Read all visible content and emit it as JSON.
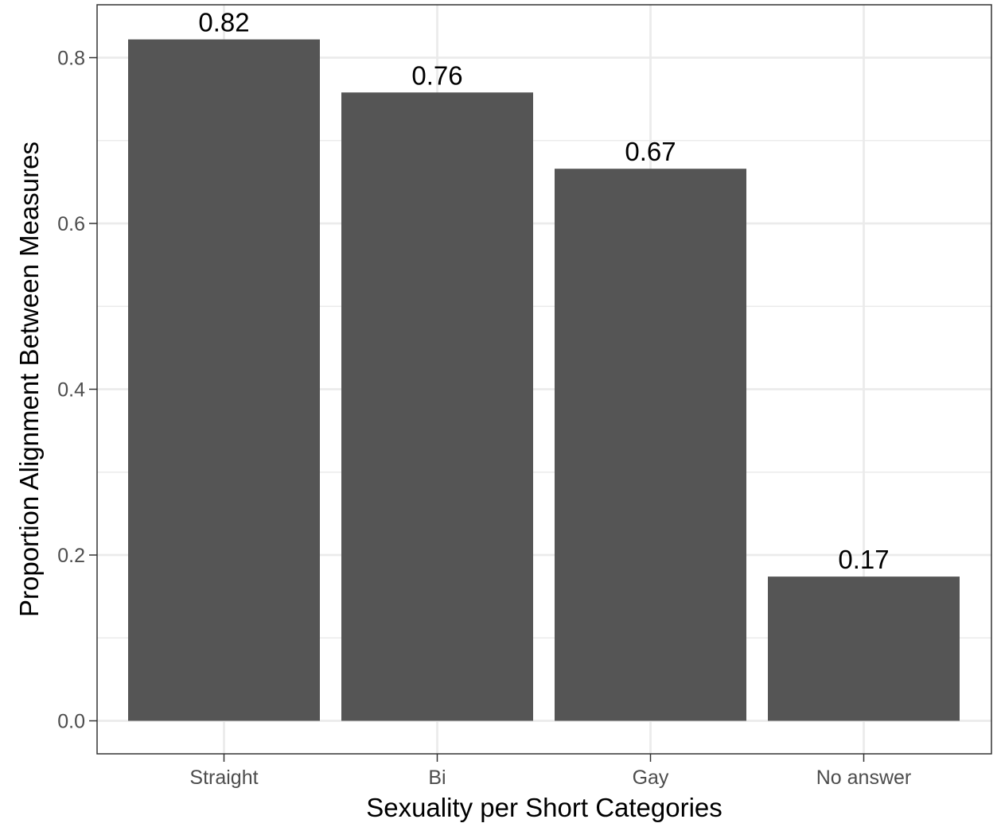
{
  "chart_data": {
    "type": "bar",
    "title": "",
    "xlabel": "Sexuality per Short Categories",
    "ylabel": "Proportion Alignment Between Measures",
    "categories": [
      "Straight",
      "Bi",
      "Gay",
      "No answer"
    ],
    "values": [
      0.822,
      0.758,
      0.666,
      0.174
    ],
    "data_labels": [
      "0.82",
      "0.76",
      "0.67",
      "0.17"
    ],
    "ylim": [
      -0.04,
      0.862
    ],
    "yticks": [
      0.0,
      0.2,
      0.4,
      0.6,
      0.8
    ],
    "ytick_labels": [
      "0.0",
      "0.2",
      "0.4",
      "0.6",
      "0.8"
    ],
    "minor_yticks": [
      0.1,
      0.3,
      0.5,
      0.7
    ],
    "grid": true,
    "legend": "none",
    "bar_color": "#555555",
    "grid_color": "#ebebeb",
    "panel_border_color": "#333333"
  }
}
